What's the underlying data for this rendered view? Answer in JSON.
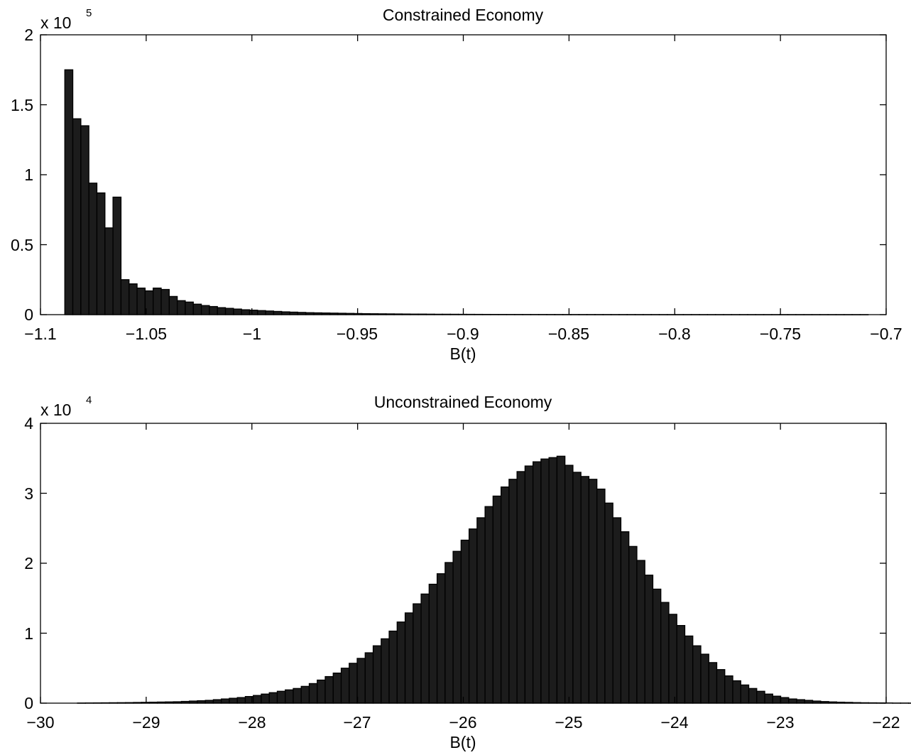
{
  "chart_data": [
    {
      "type": "bar",
      "title": "Constrained Economy",
      "xlabel": "B(t)",
      "ylabel": "",
      "xlim": [
        -1.1,
        -0.7
      ],
      "ylim": [
        0,
        2
      ],
      "y_multiplier": {
        "base": "x 10",
        "exponent": "5"
      },
      "xticks": [
        -1.1,
        -1.05,
        -1,
        -0.95,
        -0.9,
        -0.85,
        -0.8,
        -0.75,
        -0.7
      ],
      "xtick_labels": [
        "−1.1",
        "−1.05",
        "−1",
        "−0.95",
        "−0.9",
        "−0.85",
        "−0.8",
        "−0.75",
        "−0.7"
      ],
      "yticks": [
        0,
        0.5,
        1,
        1.5,
        2
      ],
      "ytick_labels": [
        "0",
        "0.5",
        "1",
        "1.5",
        "2"
      ],
      "grid": false,
      "bin_start": -1.0885,
      "bin_width": 0.0038,
      "values": [
        1.75,
        1.4,
        1.35,
        0.94,
        0.87,
        0.62,
        0.84,
        0.25,
        0.22,
        0.19,
        0.17,
        0.19,
        0.18,
        0.13,
        0.1,
        0.09,
        0.075,
        0.065,
        0.058,
        0.05,
        0.045,
        0.04,
        0.035,
        0.032,
        0.029,
        0.026,
        0.023,
        0.02,
        0.018,
        0.016,
        0.014,
        0.013,
        0.012,
        0.011,
        0.01,
        0.009,
        0.008,
        0.007,
        0.0065,
        0.006,
        0.0055,
        0.005,
        0.0045,
        0.004,
        0.004,
        0.0035,
        0.003,
        0.003,
        0.0028,
        0.0025,
        0.0023,
        0.0021,
        0.0019,
        0.0018,
        0.0016,
        0.0015,
        0.0014,
        0.0013,
        0.0012,
        0.0011,
        0.001,
        0.0009,
        0.0008,
        0.0008,
        0.0007,
        0.0007,
        0.0006,
        0.0006,
        0.0005,
        0.0005,
        0.0005,
        0.0004,
        0.0004,
        0.0004,
        0.0003,
        0.0003,
        0.0003,
        0.0003,
        0.0003,
        0.0002,
        0.0002,
        0.0002,
        0.0002,
        0.0002,
        0.0002,
        0.0002,
        0.0002,
        0.0002,
        0.0002,
        0.0002,
        0.0001,
        0.0001,
        0.0001,
        0.0001,
        0.0001,
        0.0001,
        0.0001,
        0.0001,
        0.0001,
        0.0001
      ],
      "bar_color": "#1c1c1c"
    },
    {
      "type": "bar",
      "title": "Unconstrained Economy",
      "xlabel": "B(t)",
      "ylabel": "",
      "xlim": [
        -30,
        -22
      ],
      "ylim": [
        0,
        4
      ],
      "y_multiplier": {
        "base": "x 10",
        "exponent": "4"
      },
      "xticks": [
        -30,
        -29,
        -28,
        -27,
        -26,
        -25,
        -24,
        -23,
        -22
      ],
      "xtick_labels": [
        "−30",
        "−29",
        "−28",
        "−27",
        "−26",
        "−25",
        "−24",
        "−23",
        "−22"
      ],
      "yticks": [
        0,
        1,
        2,
        3,
        4
      ],
      "ytick_labels": [
        "0",
        "1",
        "2",
        "3",
        "4"
      ],
      "grid": false,
      "bin_start": -29.65,
      "bin_width": 0.0756,
      "values": [
        0.002,
        0.003,
        0.004,
        0.005,
        0.006,
        0.007,
        0.008,
        0.01,
        0.012,
        0.014,
        0.016,
        0.018,
        0.02,
        0.025,
        0.03,
        0.035,
        0.04,
        0.05,
        0.06,
        0.07,
        0.08,
        0.095,
        0.11,
        0.13,
        0.15,
        0.17,
        0.19,
        0.21,
        0.24,
        0.28,
        0.33,
        0.38,
        0.43,
        0.5,
        0.57,
        0.64,
        0.72,
        0.82,
        0.92,
        1.03,
        1.16,
        1.29,
        1.42,
        1.56,
        1.7,
        1.85,
        2.01,
        2.17,
        2.33,
        2.49,
        2.65,
        2.81,
        2.96,
        3.09,
        3.2,
        3.31,
        3.39,
        3.45,
        3.49,
        3.51,
        3.53,
        3.4,
        3.3,
        3.24,
        3.2,
        3.06,
        2.86,
        2.65,
        2.45,
        2.24,
        2.04,
        1.83,
        1.63,
        1.44,
        1.27,
        1.11,
        0.96,
        0.82,
        0.7,
        0.58,
        0.48,
        0.39,
        0.32,
        0.26,
        0.21,
        0.17,
        0.13,
        0.1,
        0.08,
        0.06,
        0.05,
        0.04,
        0.03,
        0.023,
        0.018,
        0.014,
        0.011,
        0.008,
        0.006,
        0.005,
        0.004,
        0.003,
        0.002,
        0.002,
        0.0015,
        0.001
      ],
      "bar_color": "#1c1c1c"
    }
  ]
}
